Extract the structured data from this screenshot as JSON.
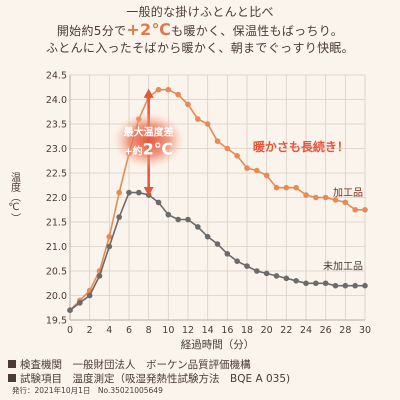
{
  "header": {
    "line1": "一般的な掛けふとんと比べ",
    "line2_pre": "開始約5分で",
    "line2_big": "+2℃",
    "line2_post": "も暖かく、保温性もばっちり。",
    "line3": "ふとんに入ったそばから暖かく、朝までぐっすり快眠。"
  },
  "footer": {
    "line1": "検査機関　一般財団法人　ボーケン品質評価機構",
    "line2": "試験項目　温度測定（吸湿発熱性試験方法　BQE A 035)",
    "line3": "発行：2021年10月1日　No.35021005649"
  },
  "colors": {
    "processed": "#e88a55",
    "unprocessed": "#6b6b6b",
    "arrow": "#e6553a",
    "grid": "#d9cfc5"
  },
  "chart_data": {
    "type": "line",
    "xlabel": "経過時間（分）",
    "ylabel": "温度（℃）",
    "xlim": [
      0,
      30
    ],
    "ylim": [
      19.5,
      24.5
    ],
    "xticks": [
      "0",
      "2",
      "4",
      "6",
      "8",
      "10",
      "12",
      "14",
      "16",
      "18",
      "20",
      "22",
      "24",
      "26",
      "28",
      "30"
    ],
    "yticks": [
      "19.5",
      "20.0",
      "20.5",
      "21.0",
      "21.5",
      "22.0",
      "22.5",
      "23.0",
      "23.5",
      "24.0",
      "24.5"
    ],
    "grid": true,
    "series": [
      {
        "name": "加工品",
        "x": [
          0,
          1,
          2,
          3,
          4,
          5,
          6,
          7,
          8,
          9,
          10,
          11,
          12,
          13,
          14,
          15,
          16,
          17,
          18,
          19,
          20,
          21,
          22,
          23,
          24,
          25,
          26,
          27,
          28,
          29,
          30
        ],
        "values": [
          19.7,
          19.9,
          20.1,
          20.5,
          21.2,
          22.1,
          22.9,
          23.6,
          24.05,
          24.2,
          24.2,
          24.1,
          23.9,
          23.6,
          23.5,
          23.15,
          23.0,
          22.85,
          22.6,
          22.55,
          22.45,
          22.2,
          22.2,
          22.2,
          22.05,
          22.0,
          22.0,
          21.95,
          21.9,
          21.75,
          21.75
        ]
      },
      {
        "name": "未加工品",
        "x": [
          0,
          1,
          2,
          3,
          4,
          5,
          6,
          7,
          8,
          9,
          10,
          11,
          12,
          13,
          14,
          15,
          16,
          17,
          18,
          19,
          20,
          21,
          22,
          23,
          24,
          25,
          26,
          27,
          28,
          29,
          30
        ],
        "values": [
          19.7,
          19.85,
          20.0,
          20.4,
          21.0,
          21.6,
          22.1,
          22.1,
          22.05,
          21.9,
          21.65,
          21.55,
          21.55,
          21.4,
          21.2,
          21.05,
          20.85,
          20.7,
          20.6,
          20.5,
          20.45,
          20.4,
          20.35,
          20.3,
          20.25,
          20.25,
          20.25,
          20.2,
          20.2,
          20.2,
          20.2
        ]
      }
    ],
    "annotations": {
      "diff_line1": "最大温度差",
      "diff_line2_pre": "+約",
      "diff_line2_big": "2℃",
      "callout": "暖かさも長続き！"
    }
  }
}
